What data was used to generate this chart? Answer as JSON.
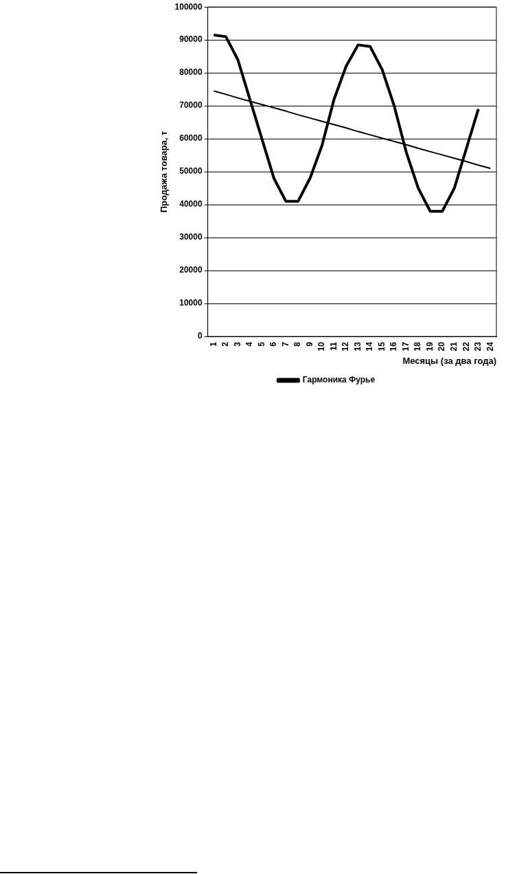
{
  "chart_data": {
    "type": "line",
    "xlabel": "Месяцы (за два года)",
    "ylabel": "Продажа товара, т",
    "categories": [
      "1",
      "2",
      "3",
      "4",
      "5",
      "6",
      "7",
      "8",
      "9",
      "10",
      "11",
      "12",
      "13",
      "14",
      "15",
      "16",
      "17",
      "18",
      "19",
      "20",
      "21",
      "22",
      "23",
      "24"
    ],
    "series": [
      {
        "name": "Гармоника Фурье",
        "color": "#000000",
        "values": [
          91500,
          91000,
          84000,
          72000,
          60000,
          48000,
          41000,
          41000,
          48000,
          58000,
          72000,
          82000,
          88500,
          88000,
          81000,
          70000,
          56000,
          45000,
          38000,
          38000,
          45000,
          57000,
          69000,
          null
        ]
      },
      {
        "type": "line",
        "color": "#000000",
        "values": [
          74500,
          73500,
          72400,
          71400,
          70400,
          69400,
          68400,
          67300,
          66300,
          65300,
          64300,
          63300,
          62200,
          61200,
          60200,
          59200,
          58200,
          57100,
          56100,
          55100,
          54100,
          53100,
          52000,
          51000
        ]
      }
    ],
    "ylim": [
      0,
      100000
    ],
    "yticks": [
      0,
      10000,
      20000,
      30000,
      40000,
      50000,
      60000,
      70000,
      80000,
      90000,
      100000
    ],
    "grid": "y",
    "legend": "bottom",
    "marker": "none",
    "line_style": "solid"
  }
}
